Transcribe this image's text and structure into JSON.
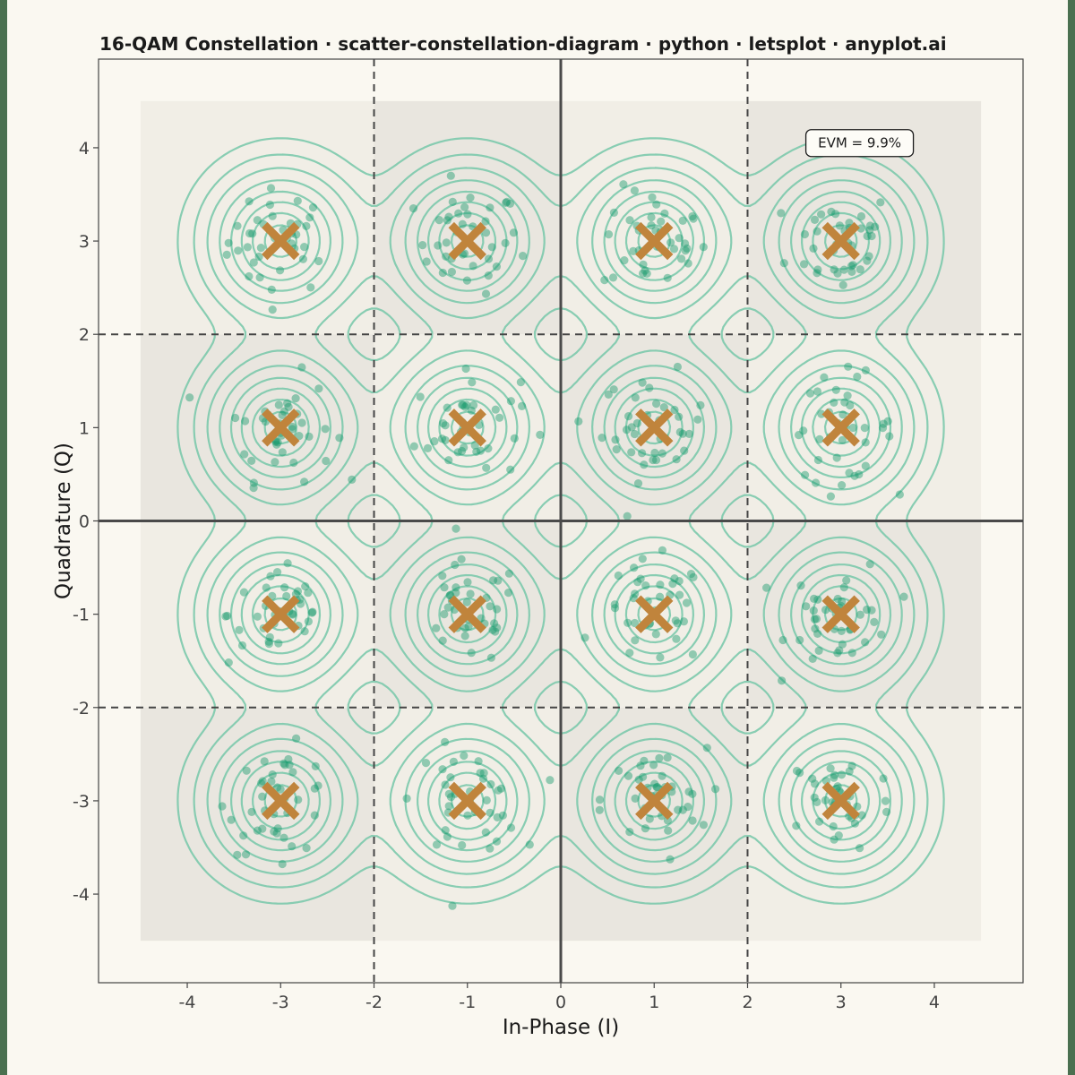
{
  "chart_data": {
    "type": "scatter",
    "title": "16-QAM Constellation · scatter-constellation-diagram · python · letsplot · anyplot.ai",
    "xlabel": "In-Phase (I)",
    "ylabel": "Quadrature (Q)",
    "xlim": [
      -4.95,
      4.95
    ],
    "ylim": [
      -4.95,
      4.95
    ],
    "x_ticks": [
      -4,
      -3,
      -2,
      -1,
      0,
      1,
      2,
      3,
      4
    ],
    "y_ticks": [
      -4,
      -3,
      -2,
      -1,
      0,
      1,
      2,
      3,
      4
    ],
    "x_tick_labels": [
      "-4",
      "-3",
      "-2",
      "-1",
      "0",
      "1",
      "2",
      "3",
      "4"
    ],
    "y_tick_labels": [
      "-4",
      "-3",
      "-2",
      "-1",
      "0",
      "1",
      "2",
      "3",
      "4"
    ],
    "decision_boundaries": [
      -2,
      0,
      2
    ],
    "evm_label": "EVM = 9.9%",
    "ideal_points": {
      "marker": "x",
      "x": [
        -3,
        -1,
        1,
        3,
        -3,
        -1,
        1,
        3,
        -3,
        -1,
        1,
        3,
        -3,
        -1,
        1,
        3
      ],
      "y": [
        3,
        3,
        3,
        3,
        1,
        1,
        1,
        1,
        -1,
        -1,
        -1,
        -1,
        -3,
        -3,
        -3,
        -3
      ]
    },
    "received_points": {
      "points_per_symbol": 40,
      "noise_std": 0.28,
      "note_visible": false
    },
    "grid": false,
    "colors": {
      "received": "#1a9c6e",
      "ideal": "#c0843c",
      "contour": "#7cc9ac",
      "region_dark": "#e9e6df",
      "region_light": "#f1eee6",
      "boundary": "#444444",
      "axis_zero": "#4a4a4a"
    }
  }
}
